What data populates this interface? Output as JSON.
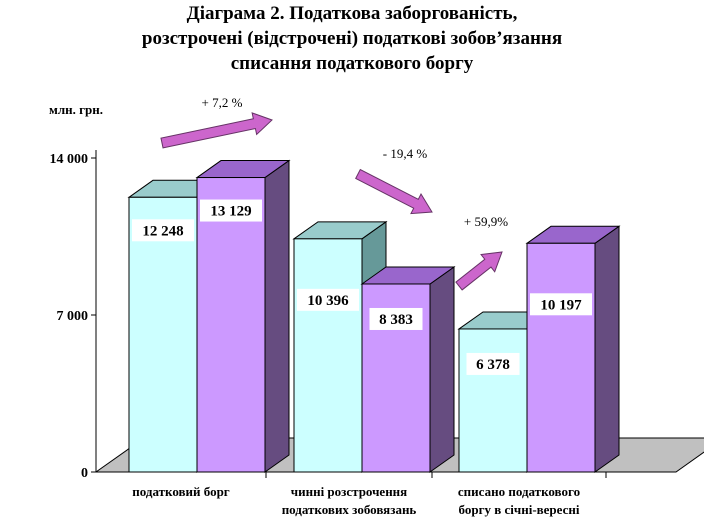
{
  "chart_data": {
    "type": "bar",
    "title_lines": [
      "Діаграма 2. Податкова заборгованість,",
      "розстрочені (відстрочені) податкові зобов’язання",
      "списання податкового боргу"
    ],
    "unit_label": "млн. грн.",
    "y_ticks": [
      "0",
      "7 000",
      "14 000"
    ],
    "ylim": [
      0,
      14000
    ],
    "categories": [
      [
        "податковий борг"
      ],
      [
        "чинні розстрочення",
        "податкових зобовязань"
      ],
      [
        "списано податкового",
        "боргу в січні-вересні"
      ]
    ],
    "series": [
      {
        "values": [
          12248,
          10396,
          6378
        ],
        "labels": [
          "12 248",
          "10 396",
          "6 378"
        ]
      },
      {
        "values": [
          13129,
          8383,
          10197
        ],
        "labels": [
          "13 129",
          "8 383",
          "10 197"
        ]
      }
    ],
    "changes": [
      "+ 7,2 %",
      "- 19,4 %",
      "+ 59,9%"
    ],
    "colors": {
      "s1_front": [
        "#ccffff",
        "#ccffff",
        "#ccffff"
      ],
      "s1_side": [
        "#669999",
        "#669999",
        "#669999"
      ],
      "s1_top": [
        "#99cccc",
        "#99cccc",
        "#99cccc"
      ],
      "s2_front": "#cc99ff",
      "s2_side": "#664c80",
      "s2_top": "#9966cc",
      "floor": "#c0c0c0",
      "arrow_fill": "#cc66cc",
      "arrow_stroke": "#663366"
    }
  }
}
